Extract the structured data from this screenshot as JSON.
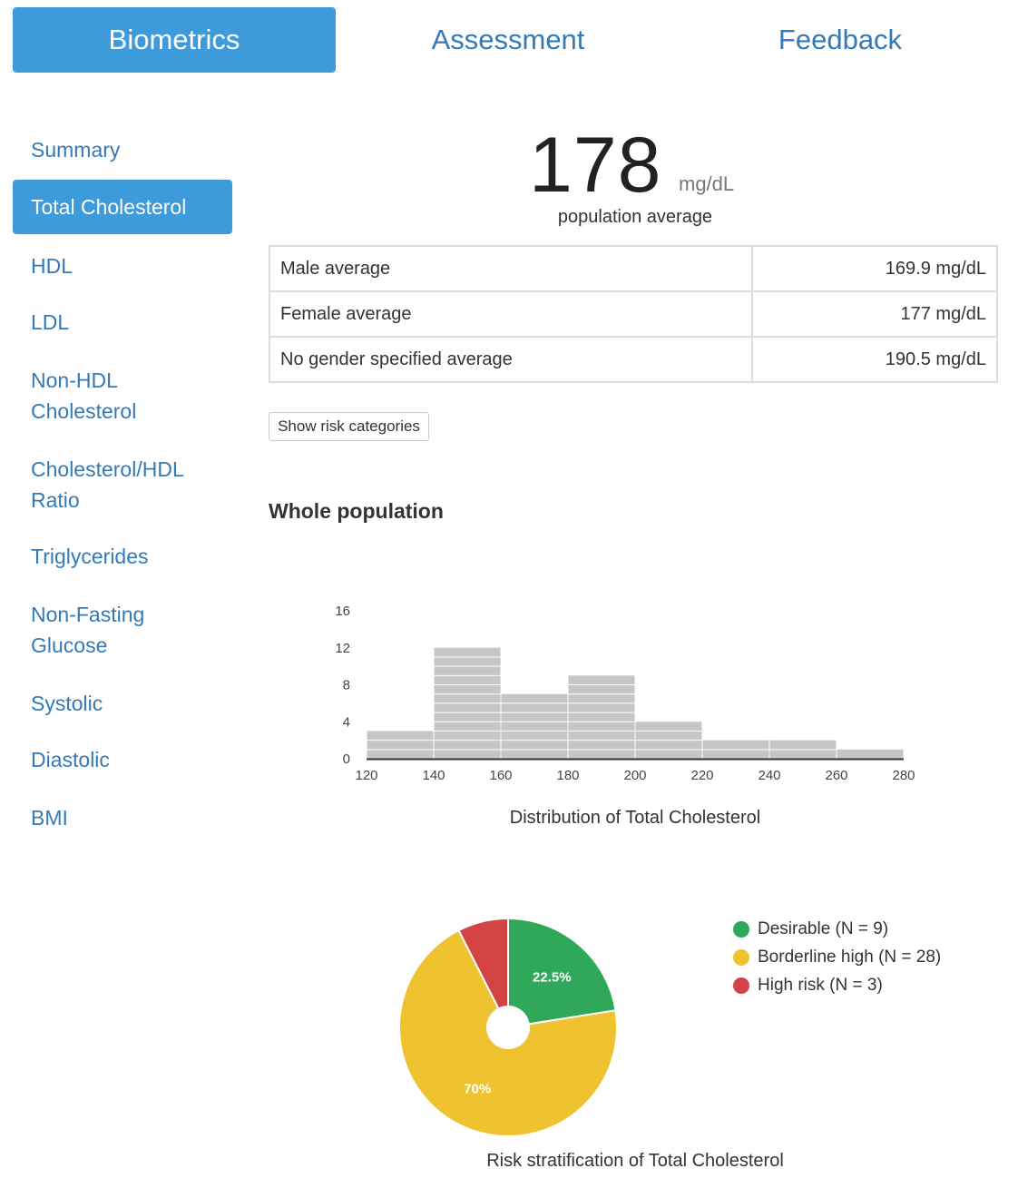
{
  "topnav": {
    "tabs": [
      {
        "label": "Biometrics",
        "active": true
      },
      {
        "label": "Assessment",
        "active": false
      },
      {
        "label": "Feedback",
        "active": false
      }
    ]
  },
  "sidebar": {
    "items": [
      {
        "label": "Summary"
      },
      {
        "label": "Total Cholesterol",
        "active": true
      },
      {
        "label": "HDL"
      },
      {
        "label": "LDL"
      },
      {
        "label": "Non-HDL Cholesterol"
      },
      {
        "label": "Cholesterol/HDL Ratio"
      },
      {
        "label": "Triglycerides"
      },
      {
        "label": "Non-Fasting Glucose"
      },
      {
        "label": "Systolic"
      },
      {
        "label": "Diastolic"
      },
      {
        "label": "BMI"
      }
    ]
  },
  "summary": {
    "value": "178",
    "unit": "mg/dL",
    "caption": "population average"
  },
  "averages": [
    {
      "label": "Male average",
      "value": "169.9 mg/dL"
    },
    {
      "label": "Female average",
      "value": "177 mg/dL"
    },
    {
      "label": "No gender specified average",
      "value": "190.5 mg/dL"
    }
  ],
  "risk_button": "Show risk categories",
  "section_title": "Whole population",
  "colors": {
    "accent": "#3d9bdc",
    "link": "#337ab7",
    "bar": "#c6c6c6",
    "desirable": "#2fa85a",
    "borderline": "#eec32f",
    "high": "#d34343"
  },
  "chart_data": [
    {
      "type": "bar",
      "title": "Distribution of Total Cholesterol",
      "bin_edges": [
        120,
        140,
        160,
        180,
        200,
        220,
        240,
        260,
        280
      ],
      "values": [
        3,
        12,
        7,
        9,
        4,
        2,
        2,
        1
      ],
      "x_ticks": [
        "120",
        "140",
        "160",
        "180",
        "200",
        "220",
        "240",
        "260",
        "280"
      ],
      "y_ticks": [
        "0",
        "4",
        "8",
        "12",
        "16"
      ],
      "ylim": [
        0,
        16
      ],
      "xlim": [
        120,
        280
      ]
    },
    {
      "type": "pie",
      "title": "Risk stratification of Total Cholesterol",
      "slices": [
        {
          "label": "Desirable (N = 9)",
          "value": 9,
          "percent_label": "22.5%",
          "color": "#2fa85a"
        },
        {
          "label": "Borderline high (N = 28)",
          "value": 28,
          "percent_label": "70%",
          "color": "#eec32f"
        },
        {
          "label": "High risk (N = 3)",
          "value": 3,
          "percent_label": "",
          "color": "#d34343"
        }
      ],
      "legend_position": "right"
    }
  ]
}
